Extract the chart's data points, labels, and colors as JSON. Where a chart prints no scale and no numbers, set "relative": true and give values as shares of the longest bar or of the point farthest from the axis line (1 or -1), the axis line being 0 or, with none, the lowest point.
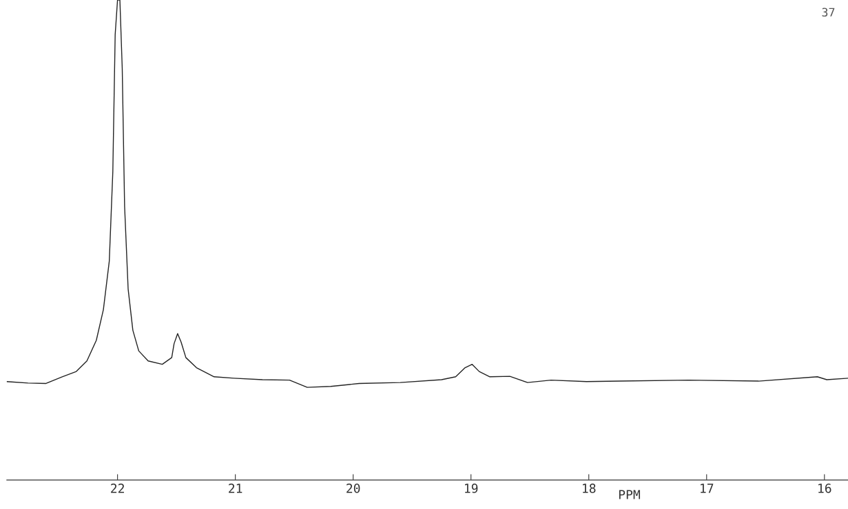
{
  "chart_data": {
    "type": "line",
    "relative": true,
    "xlabel": "PPM",
    "x": [
      22.94,
      22.76,
      22.61,
      22.47,
      22.35,
      22.26,
      22.18,
      22.12,
      22.07,
      22.04,
      22.02,
      22.0,
      21.98,
      21.96,
      21.94,
      21.91,
      21.87,
      21.82,
      21.74,
      21.62,
      21.54,
      21.52,
      21.49,
      21.46,
      21.42,
      21.33,
      21.18,
      21.01,
      20.77,
      20.54,
      20.39,
      20.19,
      19.95,
      19.6,
      19.25,
      19.13,
      19.05,
      18.99,
      18.93,
      18.84,
      18.67,
      18.52,
      18.32,
      18.02,
      17.73,
      17.15,
      16.56,
      16.06,
      15.98,
      15.8
    ],
    "series": [
      {
        "color": "#222222",
        "values": [
          0.205,
          0.202,
          0.201,
          0.215,
          0.226,
          0.248,
          0.291,
          0.355,
          0.456,
          0.642,
          0.928,
          1,
          1,
          0.857,
          0.57,
          0.398,
          0.312,
          0.269,
          0.248,
          0.241,
          0.255,
          0.284,
          0.305,
          0.287,
          0.255,
          0.234,
          0.215,
          0.212,
          0.209,
          0.208,
          0.193,
          0.195,
          0.201,
          0.203,
          0.209,
          0.215,
          0.234,
          0.241,
          0.226,
          0.215,
          0.216,
          0.203,
          0.208,
          0.205,
          0.206,
          0.208,
          0.206,
          0.215,
          0.209,
          0.212
        ]
      }
    ],
    "xlim": [
      22.94,
      15.8
    ],
    "xticks": [
      22,
      21,
      20,
      19,
      18,
      17,
      16
    ],
    "marker": "none",
    "line_style": "solid",
    "annotations": [
      "37"
    ]
  }
}
